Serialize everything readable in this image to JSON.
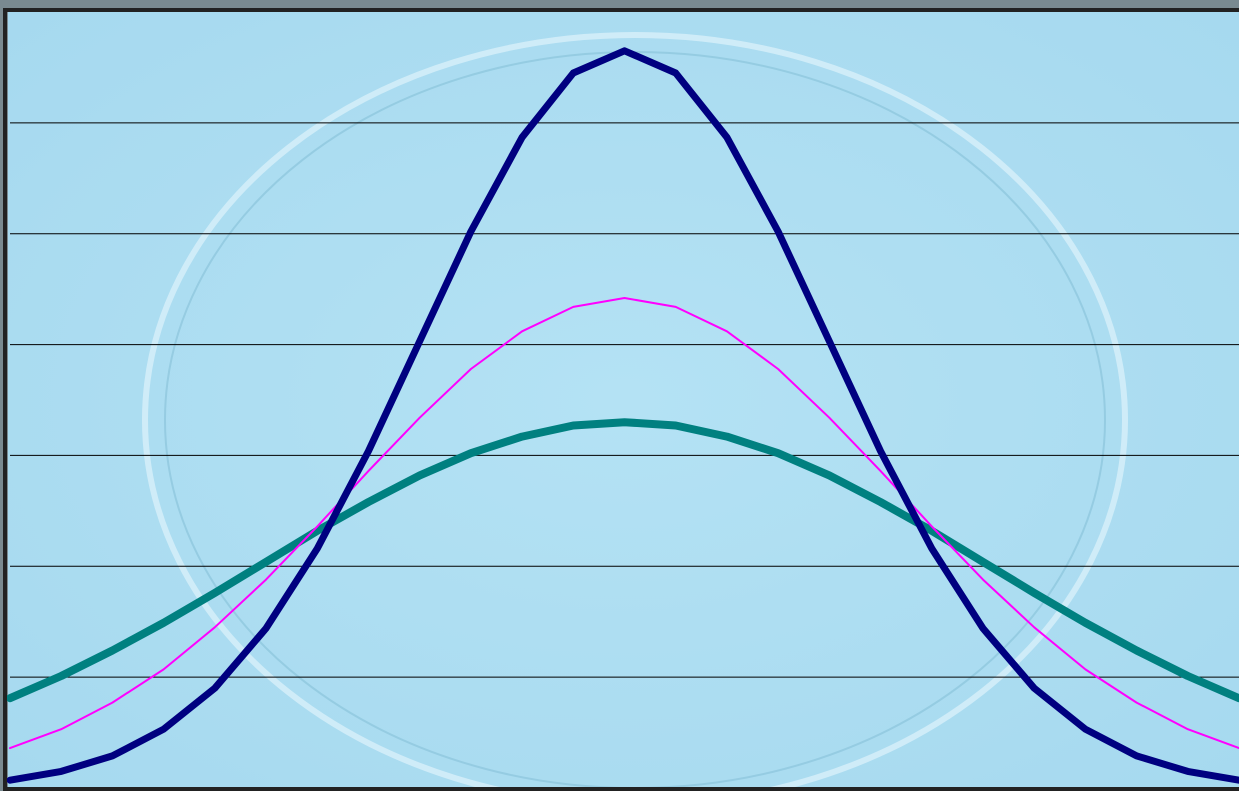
{
  "chart_data": {
    "type": "line",
    "x": [
      -3,
      -2.75,
      -2.5,
      -2.25,
      -2,
      -1.75,
      -1.5,
      -1.25,
      -1,
      -0.75,
      -0.5,
      -0.25,
      0,
      0.25,
      0.5,
      0.75,
      1,
      1.25,
      1.5,
      1.75,
      2,
      2.25,
      2.5,
      2.75,
      3
    ],
    "series": [
      {
        "color": "#000080",
        "values": [
          0.07,
          0.15,
          0.29,
          0.53,
          0.9,
          1.44,
          2.16,
          3.04,
          4.03,
          5.02,
          5.87,
          6.45,
          6.65,
          6.45,
          5.87,
          5.02,
          4.03,
          3.04,
          2.16,
          1.44,
          0.9,
          0.53,
          0.29,
          0.15,
          0.07
        ]
      },
      {
        "color": "#ff00ff",
        "values": [
          0.36,
          0.53,
          0.77,
          1.07,
          1.45,
          1.88,
          2.36,
          2.86,
          3.34,
          3.78,
          4.12,
          4.34,
          4.42,
          4.34,
          4.12,
          3.78,
          3.34,
          2.86,
          2.36,
          1.88,
          1.45,
          1.07,
          0.77,
          0.53,
          0.36
        ]
      },
      {
        "color": "#008080",
        "values": [
          0.81,
          1.01,
          1.24,
          1.49,
          1.76,
          2.04,
          2.32,
          2.58,
          2.82,
          3.02,
          3.17,
          3.27,
          3.3,
          3.27,
          3.17,
          3.02,
          2.82,
          2.58,
          2.32,
          2.04,
          1.76,
          1.49,
          1.24,
          1.01,
          0.81
        ]
      }
    ],
    "xlim": [
      -3,
      3
    ],
    "ylim": [
      0,
      7
    ],
    "yticks": [
      1,
      2,
      3,
      4,
      5,
      6
    ],
    "grid": true
  }
}
